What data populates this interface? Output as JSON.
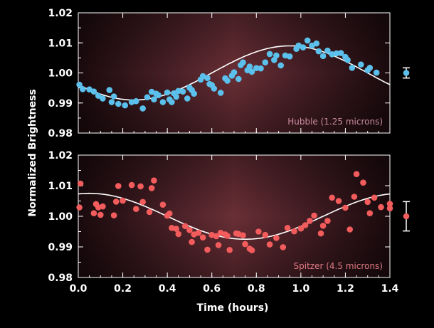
{
  "chart_data": [
    {
      "type": "scatter",
      "panel": "top",
      "label": "Hubble (1.25 microns)",
      "ylim": [
        0.98,
        1.02
      ],
      "xlim": [
        0.0,
        1.4
      ],
      "yticks": [
        "0.98",
        "0.99",
        "1.00",
        "1.01",
        "1.02"
      ],
      "color": "#5bc0eb",
      "error_bar": {
        "center": 1.0,
        "low": 0.9983,
        "high": 1.0017
      },
      "model_curve": {
        "mean": 1.0,
        "amplitude": 0.009,
        "period": 1.4,
        "peak_x": 0.95
      },
      "series": [
        {
          "x": [
            0.005,
            0.02,
            0.05,
            0.07,
            0.09,
            0.11,
            0.14,
            0.15,
            0.16,
            0.18,
            0.21,
            0.24,
            0.26,
            0.29,
            0.31,
            0.33,
            0.34,
            0.35,
            0.36,
            0.38,
            0.4,
            0.41,
            0.42,
            0.43,
            0.44,
            0.45,
            0.47,
            0.49,
            0.5,
            0.51,
            0.52,
            0.55,
            0.56,
            0.58,
            0.59,
            0.6,
            0.61,
            0.64,
            0.66,
            0.67,
            0.69,
            0.7,
            0.72,
            0.73,
            0.74,
            0.76,
            0.77,
            0.78,
            0.8,
            0.82,
            0.84,
            0.86,
            0.88,
            0.89,
            0.91,
            0.93,
            0.95,
            0.98,
            0.99,
            1.01,
            1.03,
            1.05,
            1.07,
            1.08,
            1.1,
            1.12,
            1.14,
            1.16,
            1.18,
            1.2,
            1.21,
            1.23,
            1.27,
            1.3,
            1.31,
            1.34
          ],
          "y": [
            0.9961,
            0.9946,
            0.9945,
            0.9938,
            0.9924,
            0.9915,
            0.9943,
            0.9903,
            0.9922,
            0.9897,
            0.9892,
            0.9903,
            0.9906,
            0.9882,
            0.9919,
            0.9937,
            0.9912,
            0.9931,
            0.9926,
            0.9903,
            0.9935,
            0.9912,
            0.9903,
            0.9932,
            0.9921,
            0.994,
            0.9938,
            0.9915,
            0.9951,
            0.9943,
            0.9931,
            0.9978,
            0.9989,
            0.9983,
            0.9963,
            0.996,
            0.9948,
            0.9934,
            0.9982,
            0.9974,
            0.9991,
            1.0002,
            0.998,
            1.0026,
            1.0035,
            1.0009,
            1.0021,
            1.0004,
            1.0016,
            1.0015,
            1.0035,
            1.0063,
            1.0043,
            1.0058,
            1.0025,
            1.0058,
            1.0055,
            1.008,
            1.0091,
            1.0085,
            1.0108,
            1.0091,
            1.0098,
            1.0072,
            1.0056,
            1.0074,
            1.0062,
            1.0065,
            1.0066,
            1.0053,
            1.0043,
            1.0017,
            1.0028,
            1.0009,
            1.0017,
            1.0001
          ],
          "note": ""
        }
      ]
    },
    {
      "type": "scatter",
      "panel": "bottom",
      "label": "Spitzer (4.5 microns)",
      "ylim": [
        0.98,
        1.02
      ],
      "xlim": [
        0.0,
        1.4
      ],
      "yticks": [
        "0.98",
        "0.99",
        "1.00",
        "1.01",
        "1.02"
      ],
      "xticks": [
        "0.0",
        "0.2",
        "0.4",
        "0.6",
        "0.8",
        "1.0",
        "1.2",
        "1.4"
      ],
      "xlabel": "Time (hours)",
      "color": "#f25c5c",
      "error_bar": {
        "center": 1.0,
        "low": 0.9952,
        "high": 1.0048
      },
      "model_curve": {
        "mean": 1.0,
        "amplitude": 0.0075,
        "period": 1.4,
        "peak_x": 0.05
      },
      "series": [
        {
          "x": [
            0.005,
            0.01,
            0.07,
            0.08,
            0.09,
            0.1,
            0.11,
            0.16,
            0.17,
            0.18,
            0.2,
            0.24,
            0.26,
            0.28,
            0.29,
            0.32,
            0.33,
            0.34,
            0.38,
            0.4,
            0.41,
            0.42,
            0.44,
            0.45,
            0.48,
            0.5,
            0.51,
            0.52,
            0.54,
            0.56,
            0.58,
            0.6,
            0.62,
            0.63,
            0.64,
            0.66,
            0.67,
            0.68,
            0.71,
            0.72,
            0.74,
            0.75,
            0.77,
            0.78,
            0.81,
            0.84,
            0.86,
            0.89,
            0.92,
            0.94,
            0.97,
            1.0,
            1.02,
            1.04,
            1.06,
            1.09,
            1.1,
            1.12,
            1.14,
            1.17,
            1.2,
            1.22,
            1.24,
            1.25,
            1.28,
            1.3,
            1.31,
            1.33,
            1.36,
            1.4,
            1.4
          ],
          "y": [
            1.0029,
            1.0107,
            1.001,
            1.004,
            1.0029,
            1.0005,
            1.0032,
            1.0003,
            1.0048,
            1.0099,
            1.0051,
            1.0102,
            1.0024,
            1.0098,
            1.0047,
            1.0014,
            1.0092,
            1.0117,
            1.0038,
            1.0002,
            1.0009,
            0.9962,
            0.9959,
            0.9942,
            0.9968,
            0.9955,
            0.9916,
            0.9941,
            0.9946,
            0.9931,
            0.9891,
            0.9939,
            0.9935,
            0.9906,
            0.9946,
            0.9941,
            0.9936,
            0.989,
            0.9944,
            0.9942,
            0.9938,
            0.9909,
            0.9894,
            0.9889,
            0.995,
            0.9939,
            0.9908,
            0.9929,
            0.9899,
            0.9962,
            0.9951,
            0.996,
            0.9971,
            0.9985,
            1.0002,
            0.9944,
            0.9969,
            0.9985,
            1.0061,
            1.005,
            1.0028,
            0.9957,
            1.0064,
            1.0138,
            1.011,
            1.0047,
            1.001,
            1.0061,
            1.003,
            1.0026,
            1.0041
          ],
          "note": ""
        }
      ]
    }
  ],
  "axes": {
    "ylabel": "Normalized Brightness",
    "xlabel": "Time (hours)"
  },
  "colors": {
    "background": "#000000",
    "panel_edge": "#1f0d10",
    "panel_center": "#6a2f36",
    "axis": "#ffffff",
    "hubble": "#5bc0eb",
    "spitzer": "#f25c5c",
    "hubble_label": "#c98aa0",
    "spitzer_label": "#e07a84"
  }
}
